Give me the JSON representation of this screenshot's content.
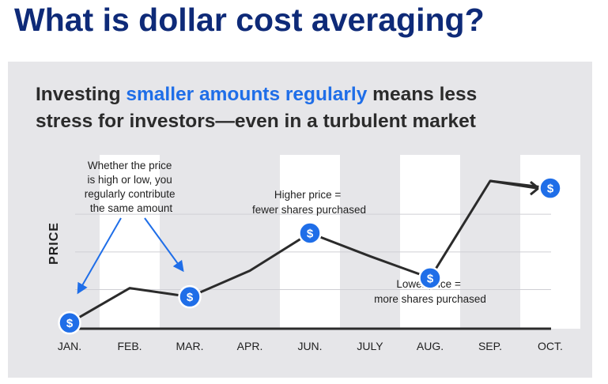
{
  "header": {
    "title": "What is dollar cost averaging?"
  },
  "subtitle": {
    "line1_before": "Investing ",
    "line1_highlight": "smaller amounts regularly",
    "line1_after": " means less",
    "line2": "stress for investors—even in a turbulent market"
  },
  "colors": {
    "title": "#0e2a78",
    "highlight": "#1f6ee8",
    "panel": "#e6e6e9",
    "coin": "#1f6ee8",
    "line": "#2b2b2b"
  },
  "chart_data": {
    "type": "line",
    "ylabel": "PRICE",
    "categories": [
      "JAN.",
      "FEB.",
      "MAR.",
      "APR.",
      "JUN.",
      "JULY",
      "AUG.",
      "SEP.",
      "OCT."
    ],
    "series": [
      {
        "values": [
          0.2,
          1.4,
          1.1,
          2.0,
          3.3,
          2.5,
          1.75,
          5.1,
          4.85
        ]
      }
    ],
    "ylim": [
      0,
      6
    ],
    "coin_points": [
      0,
      2,
      4,
      6,
      8
    ],
    "coin_symbol": "$",
    "bands": [
      "FEB.",
      "JUN.",
      "AUG.",
      "OCT."
    ],
    "gridlines": [
      1.35,
      2.65,
      3.95
    ],
    "annotations": [
      {
        "name": "annotation-regular-contribution",
        "lines": [
          "Whether the price",
          "is high or low, you",
          "regularly contribute",
          "the same amount"
        ]
      },
      {
        "name": "annotation-higher-price",
        "lines": [
          "Higher price =",
          "fewer shares purchased"
        ]
      },
      {
        "name": "annotation-lower-price",
        "lines": [
          "Lower price =",
          "more shares purchased"
        ]
      }
    ]
  }
}
